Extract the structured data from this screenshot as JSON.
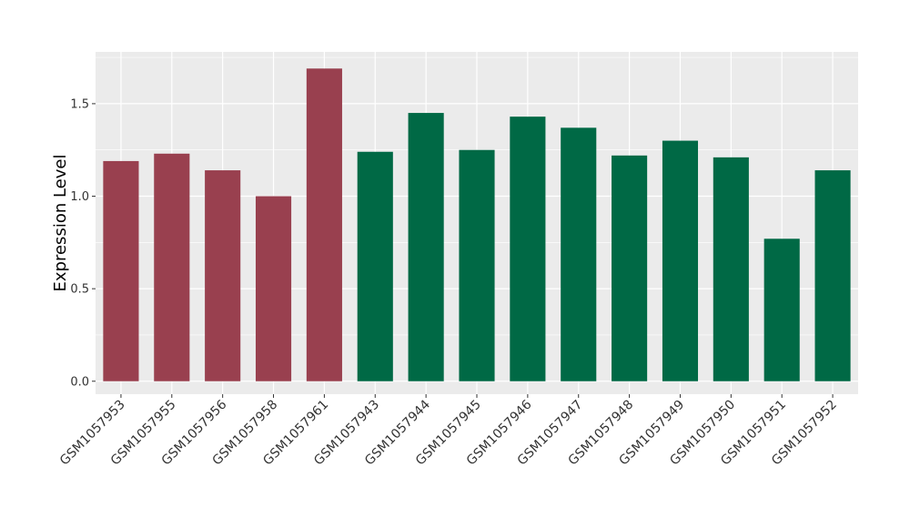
{
  "chart_data": {
    "type": "bar",
    "title": "",
    "xlabel": "",
    "ylabel": "Expression Level",
    "ylim": [
      -0.07,
      1.78
    ],
    "yticks": [
      0.0,
      0.5,
      1.0,
      1.5
    ],
    "ytick_labels": [
      "0.0",
      "0.5",
      "1.0",
      "1.5"
    ],
    "grid": true,
    "categories": [
      "GSM1057953",
      "GSM1057955",
      "GSM1057956",
      "GSM1057958",
      "GSM1057961",
      "GSM1057943",
      "GSM1057944",
      "GSM1057945",
      "GSM1057946",
      "GSM1057947",
      "GSM1057948",
      "GSM1057949",
      "GSM1057950",
      "GSM1057951",
      "GSM1057952"
    ],
    "values": [
      1.19,
      1.23,
      1.14,
      1.0,
      1.69,
      1.24,
      1.45,
      1.25,
      1.43,
      1.37,
      1.22,
      1.3,
      1.21,
      0.77,
      1.14
    ],
    "groups": [
      "a",
      "a",
      "a",
      "a",
      "a",
      "b",
      "b",
      "b",
      "b",
      "b",
      "b",
      "b",
      "b",
      "b",
      "b"
    ],
    "group_colors": {
      "a": "#99404f",
      "b": "#006945"
    },
    "panel_background": "#ebebeb",
    "grid_color": "#ffffff"
  }
}
